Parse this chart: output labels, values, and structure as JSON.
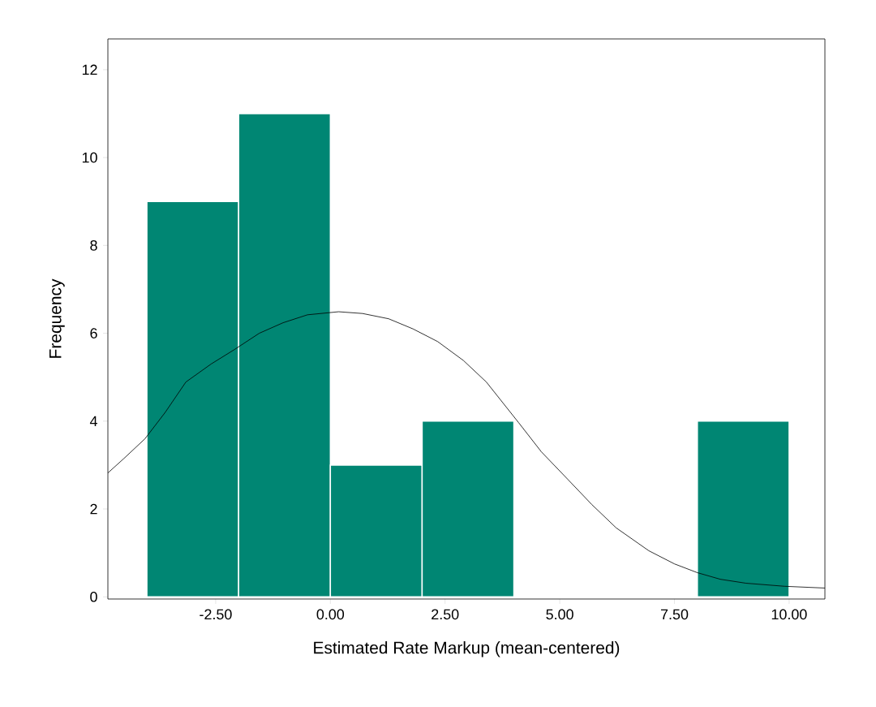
{
  "chart_data": {
    "type": "histogram",
    "xlabel": "Estimated Rate Markup (mean-centered)",
    "ylabel": "Frequency",
    "bins": [
      -4,
      -2,
      0,
      2,
      4,
      6,
      8,
      10
    ],
    "series": [
      {
        "color": "#008673",
        "values": [
          9,
          11,
          3,
          4,
          0,
          0,
          4
        ]
      },
      {
        "type": "line",
        "color": "#000000",
        "x": [
          -4.85,
          -4.5,
          -4.04,
          -3.6,
          -3.15,
          -2.6,
          -2.09,
          -1.55,
          -1.03,
          -0.5,
          0.18,
          0.7,
          1.27,
          1.8,
          2.34,
          2.9,
          3.4,
          4.1,
          4.6,
          5.17,
          5.7,
          6.23,
          6.94,
          7.5,
          8.0,
          8.5,
          9.06,
          9.9,
          10.78
        ],
        "values": [
          2.82,
          3.15,
          3.6,
          4.2,
          4.89,
          5.3,
          5.63,
          6.0,
          6.24,
          6.42,
          6.49,
          6.45,
          6.33,
          6.1,
          5.81,
          5.38,
          4.89,
          3.97,
          3.3,
          2.68,
          2.1,
          1.57,
          1.05,
          0.75,
          0.55,
          0.4,
          0.31,
          0.24,
          0.2
        ]
      }
    ],
    "xlim": [
      -4.85,
      10.78
    ],
    "ylim": [
      -0.05,
      12.7
    ],
    "xticks": [
      {
        "value": -2.5,
        "label": "-2.50"
      },
      {
        "value": 0,
        "label": "0.00"
      },
      {
        "value": 2.5,
        "label": "2.50"
      },
      {
        "value": 5,
        "label": "5.00"
      },
      {
        "value": 7.5,
        "label": "7.50"
      },
      {
        "value": 10,
        "label": "10.00"
      }
    ],
    "yticks": [
      0,
      2,
      4,
      6,
      8,
      10,
      12
    ],
    "grid": false,
    "marker": "none",
    "line_style": "solid"
  }
}
